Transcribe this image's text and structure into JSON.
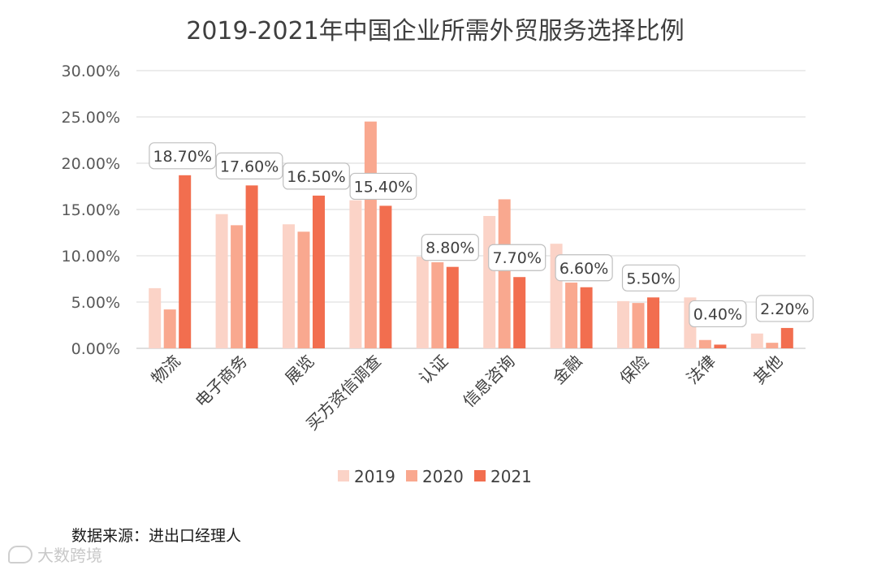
{
  "chart_data": {
    "type": "bar",
    "title": "2019-2021年中国企业所需外贸服务选择比例",
    "categories": [
      "物流",
      "电子商务",
      "展览",
      "买方资信调查",
      "认证",
      "信息咨询",
      "金融",
      "保险",
      "法律",
      "其他"
    ],
    "series": [
      {
        "name": "2019",
        "color": "#fbd3c7",
        "values": [
          6.5,
          14.5,
          13.4,
          16.0,
          9.9,
          14.3,
          11.3,
          5.1,
          5.5,
          1.6
        ]
      },
      {
        "name": "2020",
        "color": "#f9a88f",
        "values": [
          4.2,
          13.3,
          12.6,
          24.5,
          9.3,
          16.1,
          7.1,
          4.9,
          0.9,
          0.6
        ]
      },
      {
        "name": "2021",
        "color": "#f26e4f",
        "values": [
          18.7,
          17.6,
          16.5,
          15.4,
          8.8,
          7.7,
          6.6,
          5.5,
          0.4,
          2.2
        ]
      }
    ],
    "data_labels": [
      "18.70%",
      "17.60%",
      "16.50%",
      "15.40%",
      "8.80%",
      "7.70%",
      "6.60%",
      "5.50%",
      "0.40%",
      "2.20%"
    ],
    "y_ticks": [
      "0.00%",
      "5.00%",
      "10.00%",
      "15.00%",
      "20.00%",
      "25.00%",
      "30.00%"
    ],
    "ylim": [
      0,
      30
    ],
    "grid": true,
    "legend": "bottom"
  },
  "footer": {
    "source": "数据来源：进出口经理人",
    "watermark": "大数跨境"
  }
}
